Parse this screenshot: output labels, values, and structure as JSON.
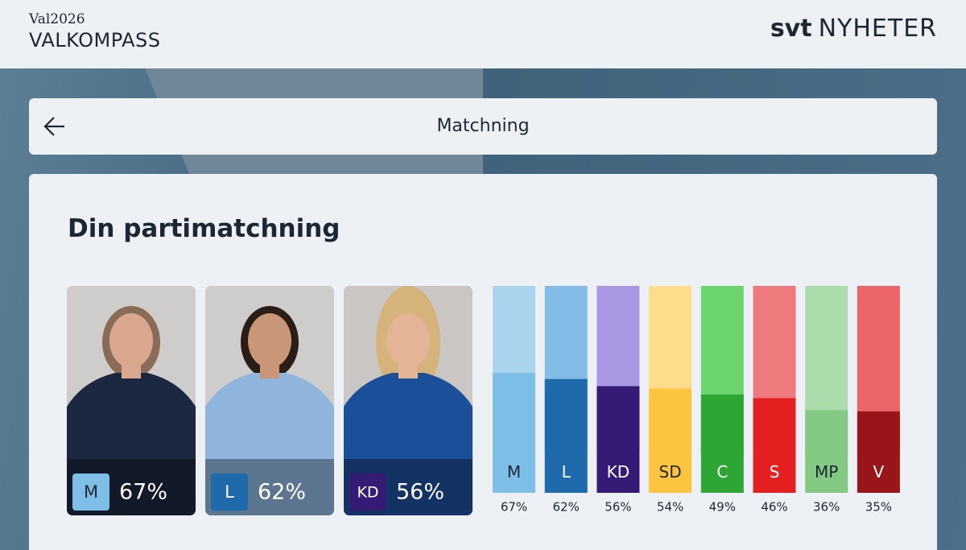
{
  "header": {
    "kicker": "Val2026",
    "title": "VALKOMPASS",
    "brand": "svt",
    "brand_section": "NYHETER"
  },
  "nav": {
    "title": "Matchning"
  },
  "section": {
    "title": "Din partimatchning"
  },
  "cards": [
    {
      "party": "M",
      "match": "67%",
      "color": "#7dbfe6",
      "text_color": "#1d2733"
    },
    {
      "party": "L",
      "match": "62%",
      "color": "#1f6aab",
      "text_color": "#ffffff"
    },
    {
      "party": "KD",
      "match": "56%",
      "color": "#351b76",
      "text_color": "#ffffff"
    }
  ],
  "chart_data": {
    "type": "bar",
    "categories": [
      "M",
      "L",
      "KD",
      "SD",
      "C",
      "S",
      "MP",
      "V"
    ],
    "values": [
      67,
      62,
      56,
      54,
      49,
      46,
      36,
      35
    ],
    "value_labels": [
      "67%",
      "62%",
      "56%",
      "54%",
      "49%",
      "46%",
      "36%",
      "35%"
    ],
    "colors": [
      "#7dbfe6",
      "#1f6aab",
      "#351b76",
      "#fdc43f",
      "#2ea636",
      "#e31f1f",
      "#83c883",
      "#98161a"
    ],
    "track_colors": [
      "#a8d4ee",
      "#84bce8",
      "#aa97e4",
      "#fddc8c",
      "#6ad46d",
      "#ef7a7d",
      "#abdcab",
      "#ea6669"
    ],
    "label_colors": [
      "#1d2733",
      "#ffffff",
      "#ffffff",
      "#1d2733",
      "#ffffff",
      "#ffffff",
      "#1d2733",
      "#ffffff"
    ]
  }
}
